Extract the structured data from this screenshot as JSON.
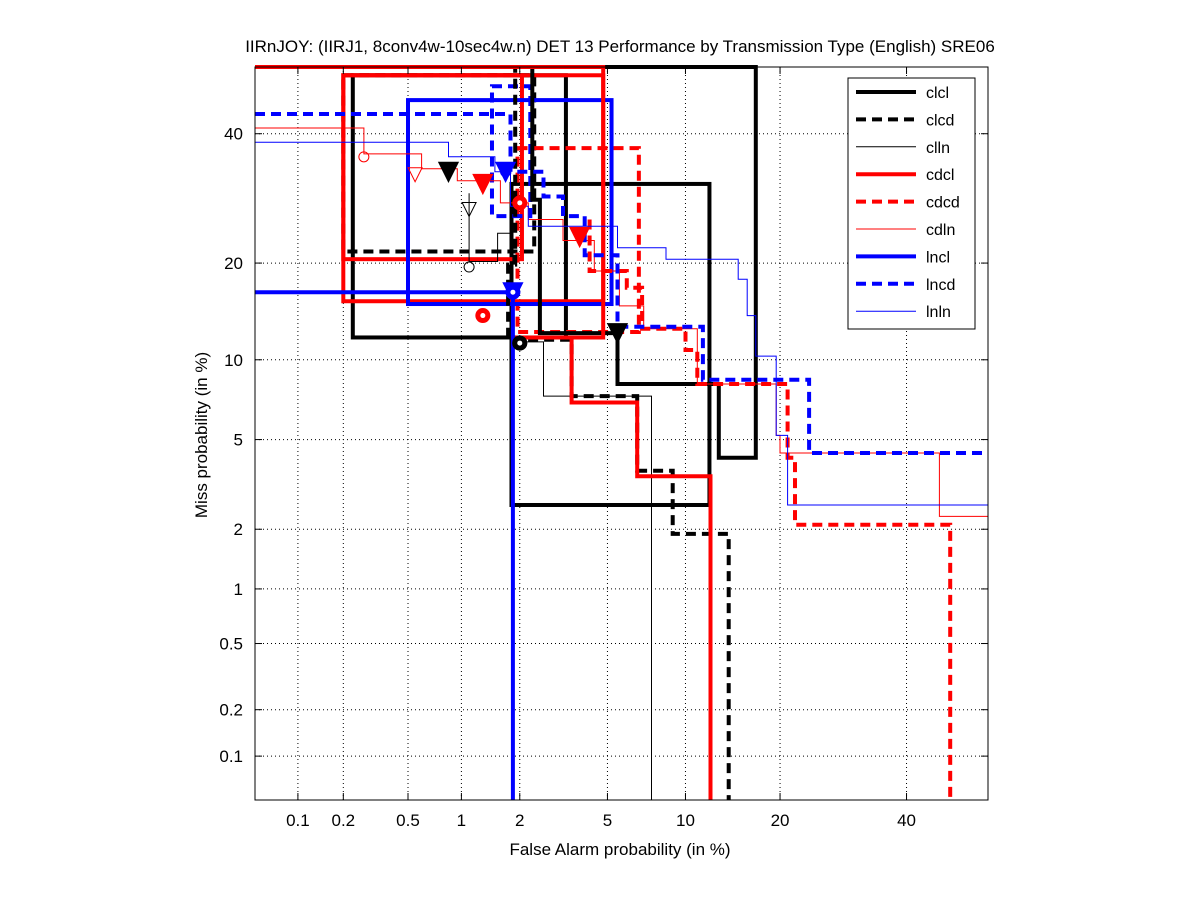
{
  "chart_data": {
    "type": "line",
    "title": "IIRnJOY: (IIRJ1, 8conv4w-10sec4w.n) DET 13 Performance by Transmission Type (English) SRE06",
    "xlabel": "False Alarm probability (in %)",
    "ylabel": "Miss probability (in %)",
    "x_scale": "normal-deviate (probit)",
    "y_scale": "normal-deviate (probit)",
    "xlim": [
      0.05,
      55
    ],
    "ylim": [
      0.05,
      52
    ],
    "x_ticks": [
      "0.1",
      "0.2",
      "0.5",
      "1",
      "2",
      "5",
      "10",
      "20",
      "40"
    ],
    "y_ticks": [
      "0.1",
      "0.2",
      "0.5",
      "1",
      "2",
      "5",
      "10",
      "20",
      "40"
    ],
    "grid": "dotted",
    "legend_position": "top-right",
    "series": [
      {
        "name": "clcl",
        "color": "#000000",
        "dash": "solid",
        "width": "thick",
        "curve": [
          [
            0.05,
            52
          ],
          [
            0.05,
            52
          ],
          [
            17,
            52
          ],
          [
            17,
            4.2
          ],
          [
            13,
            4.2
          ],
          [
            13,
            8.2
          ],
          [
            5.5,
            8.2
          ],
          [
            5.5,
            12.3
          ],
          [
            2.5,
            12.3
          ],
          [
            2.5,
            24
          ],
          [
            2.5,
            29
          ],
          [
            2.3,
            29
          ],
          [
            2.3,
            52
          ]
        ],
        "actual": {
          "x": 2.0,
          "y": 11.4,
          "marker": "circle"
        },
        "min_dcf": {
          "x": 5.5,
          "y": 12.3,
          "marker": "triangle-down"
        },
        "confidence_boxes": [
          {
            "x": [
              0.23,
              3.3
            ],
            "y": [
              11.9,
              50.5
            ]
          },
          {
            "x": 1.82,
            "x2": 12.1,
            "y": [
              2.6,
              31.5
            ]
          }
        ]
      },
      {
        "name": "clcd",
        "color": "#000000",
        "dash": "dashed",
        "width": "thick",
        "curve": [
          [
            0.05,
            52
          ],
          [
            1.9,
            52
          ],
          [
            1.9,
            19.8
          ],
          [
            1.75,
            19.8
          ],
          [
            1.75,
            11.7
          ],
          [
            3.5,
            11.7
          ],
          [
            3.5,
            7.4
          ],
          [
            6.6,
            7.4
          ],
          [
            6.6,
            3.7
          ],
          [
            9,
            3.7
          ],
          [
            9,
            1.9
          ],
          [
            14,
            1.9
          ],
          [
            14,
            0.05
          ]
        ],
        "actual": {
          "x": 2.0,
          "y": 11.4,
          "marker": "circle"
        },
        "min_dcf": {
          "x": 0.85,
          "y": 33.5,
          "marker": "triangle-down"
        },
        "confidence_boxes": [
          {
            "x": [
              0.2,
              2.35
            ],
            "y": [
              21.5,
              50.5
            ]
          }
        ]
      },
      {
        "name": "clln",
        "color": "#000000",
        "dash": "solid",
        "width": "thin",
        "curve": [
          [
            1.1,
            30
          ],
          [
            1.1,
            20.2
          ],
          [
            1.55,
            20.2
          ],
          [
            1.55,
            24
          ],
          [
            1.85,
            24
          ],
          [
            1.85,
            11.5
          ],
          [
            2.6,
            11.5
          ],
          [
            2.6,
            7.4
          ],
          [
            7.5,
            7.4
          ],
          [
            7.5,
            0.05
          ]
        ],
        "actual": {
          "x": 1.1,
          "y": 19.5,
          "marker": "circle-open"
        },
        "min_dcf": {
          "x": 1.1,
          "y": 27.5,
          "marker": "triangle-down-open"
        },
        "confidence_boxes": []
      },
      {
        "name": "cdcl",
        "color": "#ff0000",
        "dash": "solid",
        "width": "thick",
        "curve": [
          [
            0.05,
            52
          ],
          [
            4.8,
            52
          ],
          [
            4.8,
            11.9
          ],
          [
            1.9,
            11.9
          ],
          [
            3.5,
            11.9
          ],
          [
            3.5,
            10.3
          ],
          [
            3.5,
            7.0
          ],
          [
            6.6,
            7.0
          ],
          [
            6.6,
            3.5
          ],
          [
            12.2,
            3.5
          ],
          [
            12.2,
            0.05
          ]
        ],
        "actual": {
          "x": 1.3,
          "y": 14,
          "marker": "circle"
        },
        "min_dcf": {
          "x": 1.3,
          "y": 31.5,
          "marker": "triangle-down"
        },
        "confidence_boxes": [
          {
            "x": [
              0.2,
              2.05
            ],
            "y": [
              20.5,
              50.5
            ]
          },
          {
            "x": [
              0.2,
              4.8
            ],
            "y": [
              15.5,
              50.5
            ]
          }
        ]
      },
      {
        "name": "cdcd",
        "color": "#ff0000",
        "dash": "dashed",
        "width": "thick",
        "curve": [
          [
            4.2,
            26
          ],
          [
            4.2,
            19
          ],
          [
            6,
            19
          ],
          [
            6,
            17
          ],
          [
            6.9,
            17
          ],
          [
            6.9,
            12.7
          ],
          [
            10,
            12.7
          ],
          [
            10,
            10.8
          ],
          [
            11,
            10.8
          ],
          [
            11,
            8.2
          ],
          [
            21,
            8.2
          ],
          [
            21,
            4.2
          ],
          [
            22,
            4.2
          ],
          [
            22,
            2.1
          ],
          [
            48,
            2.1
          ],
          [
            48,
            0.05
          ]
        ],
        "actual": {
          "x": 2.0,
          "y": 28.5,
          "marker": "circle"
        },
        "min_dcf": {
          "x": 3.8,
          "y": 23.5,
          "marker": "triangle-down"
        },
        "confidence_boxes": [
          {
            "x": [
              1.95,
              6.7
            ],
            "y": [
              12.4,
              37.5
            ]
          }
        ]
      },
      {
        "name": "cdln",
        "color": "#ff0000",
        "dash": "solid",
        "width": "thin",
        "curve": [
          [
            0.05,
            41
          ],
          [
            0.27,
            41
          ],
          [
            0.27,
            36.5
          ],
          [
            0.6,
            36.5
          ],
          [
            0.6,
            34
          ],
          [
            0.95,
            34
          ],
          [
            0.95,
            32
          ],
          [
            1.6,
            32
          ],
          [
            1.6,
            28.5
          ],
          [
            2.2,
            28.5
          ],
          [
            2.2,
            26
          ],
          [
            3.2,
            26
          ],
          [
            3.2,
            23
          ],
          [
            4.4,
            23
          ],
          [
            4.4,
            19
          ],
          [
            5.6,
            19
          ],
          [
            5.6,
            15
          ],
          [
            7,
            15
          ],
          [
            7,
            12.7
          ],
          [
            11,
            12.7
          ],
          [
            11,
            8.2
          ],
          [
            19.5,
            8.2
          ],
          [
            19.5,
            5.2
          ],
          [
            20,
            5.2
          ],
          [
            20,
            4.4
          ],
          [
            46,
            4.4
          ],
          [
            46,
            2.3
          ],
          [
            55,
            2.3
          ]
        ],
        "actual": {
          "x": 0.27,
          "y": 36,
          "marker": "circle-open"
        },
        "min_dcf": {
          "x": 0.55,
          "y": 33,
          "marker": "triangle-down-open"
        },
        "confidence_boxes": []
      },
      {
        "name": "lncl",
        "color": "#0000ff",
        "dash": "solid",
        "width": "thick",
        "curve": [
          [
            0.05,
            16.5
          ],
          [
            1.85,
            16.5
          ],
          [
            1.85,
            0.05
          ]
        ],
        "actual": {
          "x": 1.85,
          "y": 16.5,
          "marker": "circle"
        },
        "min_dcf": {
          "x": 1.85,
          "y": 16.5,
          "marker": "triangle-down"
        },
        "confidence_boxes": [
          {
            "x": [
              0.5,
              5.2
            ],
            "y": [
              15.2,
              46
            ]
          }
        ]
      },
      {
        "name": "lncd",
        "color": "#0000ff",
        "dash": "dashed",
        "width": "thick",
        "curve": [
          [
            0.05,
            43.5
          ],
          [
            1.8,
            43.5
          ],
          [
            1.8,
            33.5
          ],
          [
            2.6,
            33.5
          ],
          [
            2.6,
            29.5
          ],
          [
            3.2,
            29.5
          ],
          [
            3.2,
            26.5
          ],
          [
            4.0,
            26.5
          ],
          [
            4.0,
            21
          ],
          [
            5.5,
            21
          ],
          [
            5.5,
            12.9
          ],
          [
            11.5,
            12.9
          ],
          [
            11.5,
            8.5
          ],
          [
            24,
            8.5
          ],
          [
            24,
            4.4
          ],
          [
            55,
            4.4
          ]
        ],
        "actual": {
          "x": 1.7,
          "y": 33.5,
          "marker": "circle-open"
        },
        "min_dcf": {
          "x": 1.7,
          "y": 33.5,
          "marker": "triangle-down"
        },
        "confidence_boxes": [
          {
            "x": [
              1.45,
              2.25
            ],
            "y": [
              26.5,
              48.5
            ]
          }
        ]
      },
      {
        "name": "lnln",
        "color": "#0000ff",
        "dash": "solid",
        "width": "thin",
        "curve": [
          [
            0.05,
            38.5
          ],
          [
            0.85,
            38.5
          ],
          [
            0.85,
            36
          ],
          [
            1.5,
            36
          ],
          [
            1.5,
            33.5
          ],
          [
            1.8,
            33.5
          ],
          [
            1.8,
            28
          ],
          [
            2.2,
            28
          ],
          [
            2.2,
            25
          ],
          [
            5.5,
            25
          ],
          [
            5.5,
            22
          ],
          [
            8.5,
            22
          ],
          [
            8.5,
            20.5
          ],
          [
            15,
            20.5
          ],
          [
            15,
            18
          ],
          [
            16,
            18
          ],
          [
            16,
            14
          ],
          [
            17,
            14
          ],
          [
            17,
            10.3
          ],
          [
            19.5,
            10.3
          ],
          [
            19.5,
            5.2
          ],
          [
            21,
            5.2
          ],
          [
            21,
            2.6
          ],
          [
            55,
            2.6
          ]
        ],
        "actual": {
          "x": 1.7,
          "y": 33.5,
          "marker": "none"
        },
        "min_dcf": {
          "x": 1.7,
          "y": 33.5,
          "marker": "none"
        },
        "confidence_boxes": []
      }
    ]
  }
}
